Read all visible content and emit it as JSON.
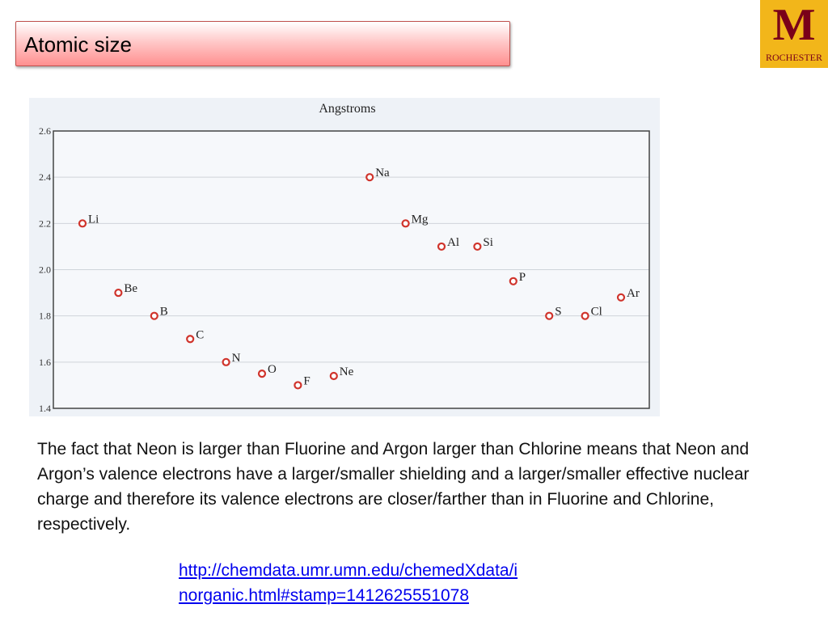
{
  "slide": {
    "title": "Atomic size",
    "logo": {
      "icon": "university-m-logo",
      "text": "ROCHESTER",
      "colors": {
        "background": "#f2b61a",
        "mark": "#7a0019"
      }
    },
    "body": "The fact that Neon is larger than Fluorine and Argon larger than Chlorine means that Neon and Argon’s valence electrons have a larger/smaller shielding and a larger/smaller effective nuclear charge and therefore its valence electrons are closer/farther than in Fluorine and Chlorine, respectively.",
    "link": {
      "line1": "http://chemdata.umr.umn.edu/chemedXdata/i",
      "line2": "norganic.html#stamp=1412625551078"
    }
  },
  "chart_data": {
    "type": "scatter",
    "title": "Angstroms",
    "xlabel": "",
    "ylabel": "",
    "ylim": [
      1.4,
      2.6
    ],
    "yticks": [
      "1.4",
      "1.6",
      "1.8",
      "2.0",
      "2.2",
      "2.4",
      "2.6"
    ],
    "grid": true,
    "marker_color": "#d0342c",
    "points": [
      {
        "label": "Li",
        "y": 2.2
      },
      {
        "label": "Be",
        "y": 1.9
      },
      {
        "label": "B",
        "y": 1.8
      },
      {
        "label": "C",
        "y": 1.7
      },
      {
        "label": "N",
        "y": 1.6
      },
      {
        "label": "O",
        "y": 1.55
      },
      {
        "label": "F",
        "y": 1.5
      },
      {
        "label": "Ne",
        "y": 1.54
      },
      {
        "label": "Na",
        "y": 2.4
      },
      {
        "label": "Mg",
        "y": 2.2
      },
      {
        "label": "Al",
        "y": 2.1
      },
      {
        "label": "Si",
        "y": 2.1
      },
      {
        "label": "P",
        "y": 1.95
      },
      {
        "label": "S",
        "y": 1.8
      },
      {
        "label": "Cl",
        "y": 1.8
      },
      {
        "label": "Ar",
        "y": 1.88
      }
    ]
  }
}
